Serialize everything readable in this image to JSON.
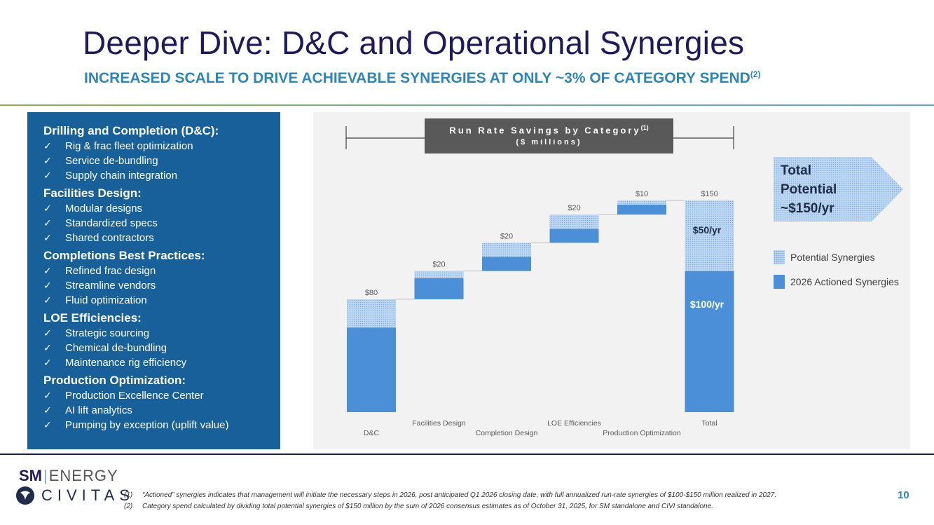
{
  "header": {
    "title": "Deeper Dive: D&C and Operational Synergies",
    "subtitle": "INCREASED SCALE TO DRIVE ACHIEVABLE SYNERGIES AT ONLY ~3% OF CATEGORY SPEND",
    "subtitle_sup": "(2)"
  },
  "left_panel": {
    "categories": [
      {
        "title": "Drilling and Completion (D&C):",
        "items": [
          "Rig & frac fleet optimization",
          "Service de-bundling",
          "Supply chain integration"
        ]
      },
      {
        "title": "Facilities Design:",
        "items": [
          "Modular designs",
          "Standardized specs",
          "Shared contractors"
        ]
      },
      {
        "title": "Completions Best Practices:",
        "items": [
          "Refined frac design",
          "Streamline vendors",
          "Fluid optimization"
        ]
      },
      {
        "title": "LOE Efficiencies:",
        "items": [
          "Strategic sourcing",
          "Chemical de-bundling",
          "Maintenance rig efficiency"
        ]
      },
      {
        "title": "Production Optimization:",
        "items": [
          "Production Excellence Center",
          "AI lift analytics",
          "Pumping by exception (uplift value)"
        ]
      }
    ],
    "check_glyph": "✓"
  },
  "chart_data": {
    "type": "bar",
    "subtype": "waterfall",
    "title": "Run Rate Savings by Category",
    "title_sup": "(1)",
    "subtitle": "($ millions)",
    "categories": [
      "D&C",
      "Facilities Design",
      "Completion Design",
      "LOE Efficiencies",
      "Production Optimization",
      "Total"
    ],
    "totals": [
      80,
      20,
      20,
      20,
      10,
      150
    ],
    "value_labels": [
      "$80",
      "$20",
      "$20",
      "$20",
      "$10",
      "$150"
    ],
    "series": [
      {
        "name": "2026 Actioned Synergies",
        "values": [
          60,
          15,
          10,
          10,
          7,
          100
        ]
      },
      {
        "name": "Potential Synergies",
        "values": [
          20,
          5,
          10,
          10,
          3,
          50
        ]
      }
    ],
    "total_labels": {
      "actioned": "$100/yr",
      "potential": "$50/yr"
    },
    "ylim": [
      0,
      150
    ],
    "callout": [
      "Total",
      "Potential",
      "~$150/yr"
    ],
    "legend": [
      "Potential Synergies",
      "2026 Actioned Synergies"
    ],
    "colors": {
      "actioned": "#4a8fd8",
      "potential": "#bfd8f2",
      "potential_dot": "#7fb0e0",
      "label": "#595959"
    }
  },
  "footer": {
    "logo_sm": "SM",
    "logo_energy": "ENERGY",
    "logo_civitas": "CIVITAS",
    "footnotes": [
      {
        "num": "(1)",
        "text": "“Actioned” synergies indicates that management will initiate the necessary steps in 2026, post anticipated Q1 2026  closing date, with full annualized run-rate synergies of $100-$150 million realized in 2027."
      },
      {
        "num": "(2)",
        "text": "Category spend calculated by dividing total potential synergies of $150 million by the sum of 2026 consensus estimates as of October 31, 2025, for SM standalone and CIVI standalone."
      }
    ],
    "page_number": "10"
  }
}
